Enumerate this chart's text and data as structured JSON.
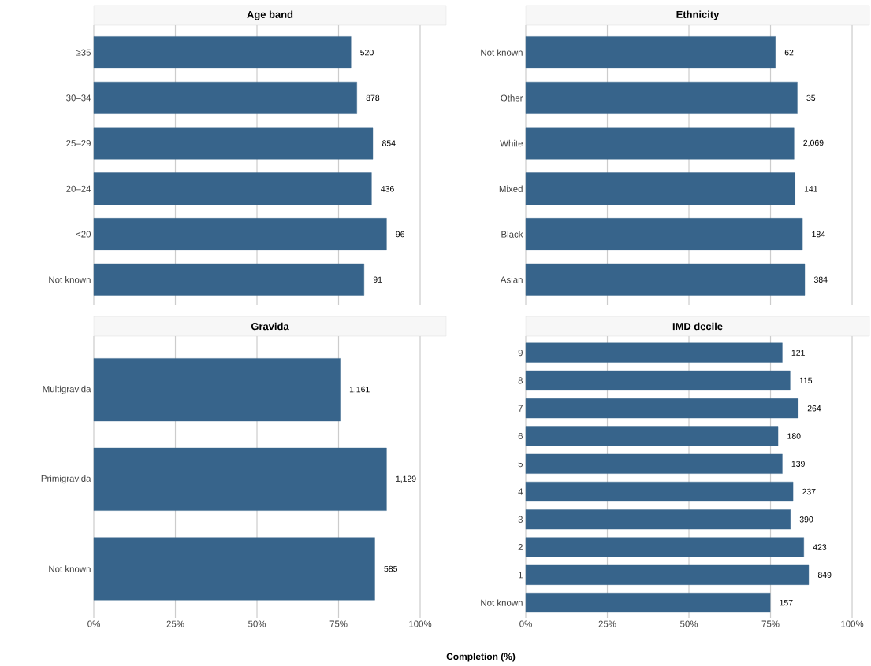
{
  "chart_data": [
    {
      "type": "bar",
      "orientation": "horizontal",
      "title": "Age band",
      "categories": [
        "≥35",
        "30–34",
        "25–29",
        "20–24",
        "<20",
        "Not known"
      ],
      "values": [
        78.8,
        80.6,
        85.5,
        85.1,
        89.7,
        82.8
      ],
      "annotations": [
        {
          "text": "520",
          "x": 78.8,
          "y": "≥35"
        },
        {
          "text": "878",
          "x": 80.6,
          "y": "30–34"
        },
        {
          "text": "854",
          "x": 85.5,
          "y": "25–29"
        },
        {
          "text": "436",
          "x": 85.1,
          "y": "20–24"
        },
        {
          "text": "96",
          "x": 89.7,
          "y": "<20"
        },
        {
          "text": "91",
          "x": 82.8,
          "y": "Not known"
        }
      ],
      "color": "#37648b",
      "xlim": [
        0,
        100
      ],
      "xticks": [
        {
          "value": 0,
          "label": null
        },
        {
          "value": 25,
          "label": null
        },
        {
          "value": 50,
          "label": null
        },
        {
          "value": 75,
          "label": null
        },
        {
          "value": 100,
          "label": null
        }
      ],
      "grid": "x",
      "tick_labels": "y"
    },
    {
      "type": "bar",
      "orientation": "horizontal",
      "title": "Ethnicity",
      "categories": [
        "Not known",
        "Other",
        "White",
        "Mixed",
        "Black",
        "Asian"
      ],
      "values": [
        76.5,
        83.2,
        82.2,
        82.5,
        84.8,
        85.5
      ],
      "annotations": [
        {
          "text": "62",
          "x": 76.5,
          "y": "Not known"
        },
        {
          "text": "35",
          "x": 83.2,
          "y": "Other"
        },
        {
          "text": "2,069",
          "x": 82.2,
          "y": "White"
        },
        {
          "text": "141",
          "x": 82.5,
          "y": "Mixed"
        },
        {
          "text": "184",
          "x": 84.8,
          "y": "Black"
        },
        {
          "text": "384",
          "x": 85.5,
          "y": "Asian"
        }
      ],
      "color": "#37648b",
      "xlim": [
        0,
        100
      ],
      "xticks": [
        {
          "value": 0,
          "label": null
        },
        {
          "value": 25,
          "label": null
        },
        {
          "value": 50,
          "label": null
        },
        {
          "value": 75,
          "label": null
        },
        {
          "value": 100,
          "label": null
        }
      ],
      "grid": "x",
      "tick_labels": "y"
    },
    {
      "type": "bar",
      "orientation": "horizontal",
      "title": "Gravida",
      "xlabel": "Completion (%)",
      "categories": [
        "Multigravida",
        "Primigravida",
        "Not known"
      ],
      "values": [
        75.5,
        89.7,
        86.1
      ],
      "annotations": [
        {
          "text": "1,161",
          "x": 75.5,
          "y": "Multigravida"
        },
        {
          "text": "1,129",
          "x": 89.7,
          "y": "Primigravida"
        },
        {
          "text": "585",
          "x": 86.1,
          "y": "Not known"
        }
      ],
      "color": "#37648b",
      "xlim": [
        0,
        100
      ],
      "xticks": [
        {
          "value": 0,
          "label": "0%"
        },
        {
          "value": 25,
          "label": "25%"
        },
        {
          "value": 50,
          "label": "50%"
        },
        {
          "value": 75,
          "label": "75%"
        },
        {
          "value": 100,
          "label": "100%"
        }
      ],
      "grid": "x"
    },
    {
      "type": "bar",
      "orientation": "horizontal",
      "title": "IMD decile",
      "categories": [
        "9",
        "8",
        "7",
        "6",
        "5",
        "4",
        "3",
        "2",
        "1",
        "Not known"
      ],
      "values": [
        78.6,
        81.0,
        83.5,
        77.3,
        78.6,
        81.9,
        81.1,
        85.2,
        86.7,
        74.9
      ],
      "annotations": [
        {
          "text": "121",
          "x": 78.6,
          "y": "9"
        },
        {
          "text": "115",
          "x": 81.0,
          "y": "8"
        },
        {
          "text": "264",
          "x": 83.5,
          "y": "7"
        },
        {
          "text": "180",
          "x": 77.3,
          "y": "6"
        },
        {
          "text": "139",
          "x": 78.6,
          "y": "5"
        },
        {
          "text": "237",
          "x": 81.9,
          "y": "4"
        },
        {
          "text": "390",
          "x": 81.1,
          "y": "3"
        },
        {
          "text": "423",
          "x": 85.2,
          "y": "2"
        },
        {
          "text": "849",
          "x": 86.7,
          "y": "1"
        },
        {
          "text": "157",
          "x": 74.9,
          "y": "Not known"
        }
      ],
      "color": "#37648b",
      "xlim": [
        0,
        100
      ],
      "xticks": [
        {
          "value": 0,
          "label": "0%"
        },
        {
          "value": 25,
          "label": "25%"
        },
        {
          "value": 50,
          "label": "50%"
        },
        {
          "value": 75,
          "label": "75%"
        },
        {
          "value": 100,
          "label": "100%"
        }
      ],
      "grid": "x"
    }
  ]
}
